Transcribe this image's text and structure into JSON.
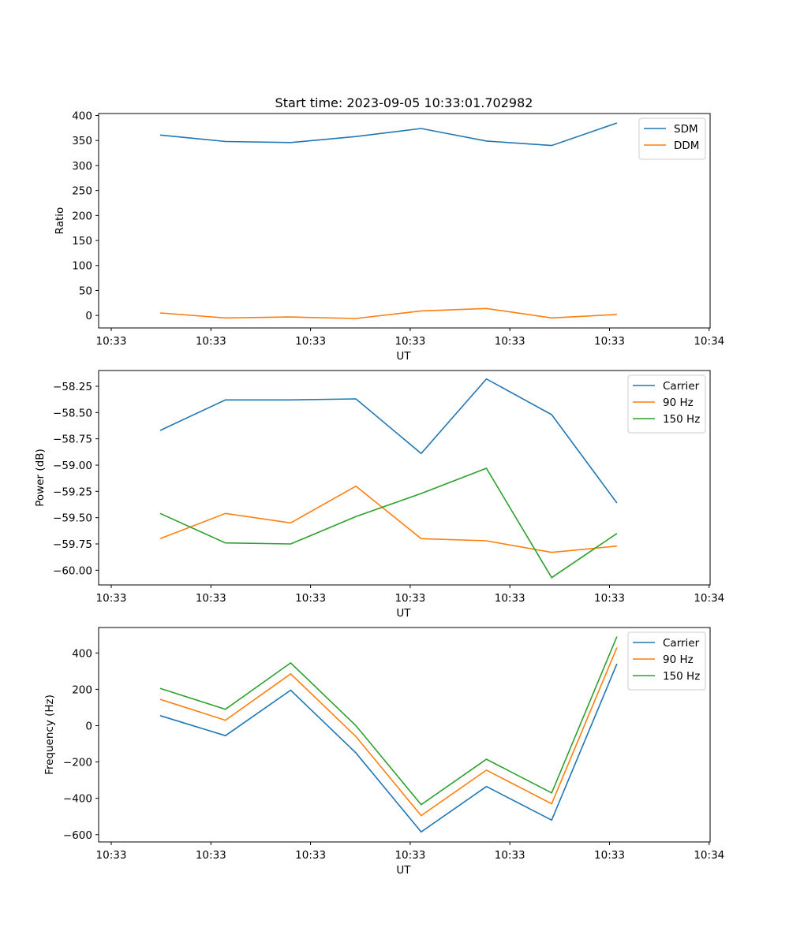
{
  "figure": {
    "title": "Start time: 2023-09-05 10:33:01.702982"
  },
  "chart_data": [
    {
      "type": "line",
      "title": "Start time: 2023-09-05 10:33:01.702982",
      "xlabel": "UT",
      "ylabel": "Ratio",
      "x": [
        1,
        2,
        3,
        4,
        5,
        6,
        7,
        8
      ],
      "xlim": [
        0.8,
        9.4
      ],
      "xticks": [
        1,
        2.5,
        4,
        5.5,
        7,
        8.5,
        10
      ],
      "xtick_values": [
        0.8,
        2.3,
        3.8,
        5.3,
        6.8,
        8.3,
        9.8
      ],
      "xtick_labels": [
        "10:33",
        "10:33",
        "10:33",
        "10:33",
        "10:33",
        "10:33",
        "10:34"
      ],
      "ylim": [
        -25,
        404
      ],
      "yticks": [
        0,
        50,
        100,
        150,
        200,
        250,
        300,
        350,
        400
      ],
      "ytick_labels": [
        "0",
        "50",
        "100",
        "150",
        "200",
        "250",
        "300",
        "350",
        "400"
      ],
      "legend_position": "top-right",
      "series": [
        {
          "name": "SDM",
          "color": "#1f77b4",
          "values": [
            361,
            348,
            346,
            358,
            374,
            349,
            340,
            385
          ]
        },
        {
          "name": "DDM",
          "color": "#ff7f0e",
          "values": [
            5,
            -5,
            -3,
            -6,
            9,
            14,
            -5,
            2
          ]
        }
      ]
    },
    {
      "type": "line",
      "title": "",
      "xlabel": "UT",
      "ylabel": "Power (dB)",
      "x": [
        1,
        2,
        3,
        4,
        5,
        6,
        7,
        8
      ],
      "xlim": [
        0.8,
        9.4
      ],
      "xtick_values": [
        0.8,
        2.3,
        3.8,
        5.3,
        6.8,
        8.3,
        9.8
      ],
      "xtick_labels": [
        "10:33",
        "10:33",
        "10:33",
        "10:33",
        "10:33",
        "10:33",
        "10:34"
      ],
      "ylim": [
        -60.14,
        -58.1
      ],
      "yticks": [
        -60.0,
        -59.75,
        -59.5,
        -59.25,
        -59.0,
        -58.75,
        -58.5,
        -58.25
      ],
      "ytick_labels": [
        "−60.00",
        "−59.75",
        "−59.50",
        "−59.25",
        "−59.00",
        "−58.75",
        "−58.50",
        "−58.25"
      ],
      "legend_position": "top-right",
      "series": [
        {
          "name": "Carrier",
          "color": "#1f77b4",
          "values": [
            -58.67,
            -58.38,
            -58.38,
            -58.37,
            -58.89,
            -58.18,
            -58.52,
            -59.36
          ]
        },
        {
          "name": "90 Hz",
          "color": "#ff7f0e",
          "values": [
            -59.7,
            -59.46,
            -59.55,
            -59.2,
            -59.7,
            -59.72,
            -59.83,
            -59.77
          ]
        },
        {
          "name": "150 Hz",
          "color": "#2ca02c",
          "values": [
            -59.46,
            -59.74,
            -59.75,
            -59.49,
            -59.27,
            -59.03,
            -60.07,
            -59.65
          ]
        }
      ]
    },
    {
      "type": "line",
      "title": "",
      "xlabel": "UT",
      "ylabel": "Frequency (Hz)",
      "x": [
        1,
        2,
        3,
        4,
        5,
        6,
        7,
        8
      ],
      "xlim": [
        0.8,
        9.4
      ],
      "xtick_values": [
        0.8,
        2.3,
        3.8,
        5.3,
        6.8,
        8.3,
        9.8
      ],
      "xtick_labels": [
        "10:33",
        "10:33",
        "10:33",
        "10:33",
        "10:33",
        "10:33",
        "10:34"
      ],
      "ylim": [
        -640,
        540
      ],
      "yticks": [
        -600,
        -400,
        -200,
        0,
        200,
        400
      ],
      "ytick_labels": [
        "−600",
        "−400",
        "−200",
        "0",
        "200",
        "400"
      ],
      "legend_position": "top-right",
      "series": [
        {
          "name": "Carrier",
          "color": "#1f77b4",
          "values": [
            55,
            -55,
            195,
            -150,
            -585,
            -335,
            -520,
            340
          ]
        },
        {
          "name": "90 Hz",
          "color": "#ff7f0e",
          "values": [
            145,
            30,
            285,
            -60,
            -495,
            -245,
            -430,
            430
          ]
        },
        {
          "name": "150 Hz",
          "color": "#2ca02c",
          "values": [
            205,
            90,
            345,
            0,
            -435,
            -185,
            -370,
            490
          ]
        }
      ]
    }
  ]
}
